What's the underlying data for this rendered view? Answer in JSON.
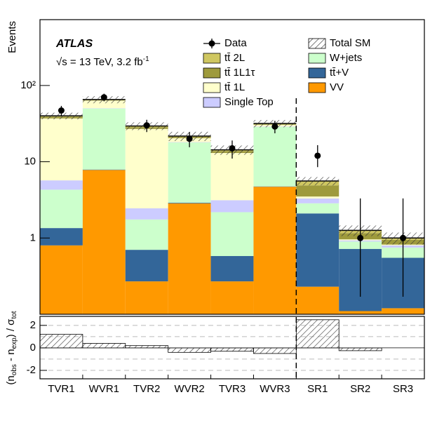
{
  "chart_data": {
    "type": "stacked_histogram",
    "title": "ATLAS",
    "subtitle_parts": [
      "√s = 13 TeV, 3.2 fb",
      "-1"
    ],
    "ylabel": "Events",
    "log_scale": true,
    "categories": [
      "TVR1",
      "WVR1",
      "TVR2",
      "WVR2",
      "TVR3",
      "WVR3",
      "SR1",
      "SR2",
      "SR3"
    ],
    "ylim": [
      0.1,
      730
    ],
    "yticks": [
      1,
      10,
      {
        "value": 100,
        "label": "10²"
      }
    ],
    "series": [
      {
        "name": "VV",
        "color": "#ff9900",
        "values": [
          0.8,
          7.8,
          0.27,
          2.85,
          0.27,
          4.7,
          0.23,
          0.11,
          0.12
        ]
      },
      {
        "name": "tt̄+V",
        "color": "#336699",
        "values": [
          0.55,
          0.1,
          0.43,
          0.05,
          0.31,
          0.05,
          1.87,
          0.61,
          0.43
        ]
      },
      {
        "name": "W+jets",
        "color": "#ccffcc",
        "values": [
          2.95,
          42,
          1.05,
          15,
          1.6,
          24,
          0.75,
          0.18,
          0.2
        ]
      },
      {
        "name": "Single Top",
        "color": "#ccccff",
        "values": [
          1.4,
          0.5,
          0.7,
          0.2,
          0.95,
          0.3,
          0.45,
          0.03,
          0.05
        ]
      },
      {
        "name": "tt̄ 1L",
        "color": "#ffffcc",
        "values": [
          31.3,
          13,
          24.5,
          2.3,
          9.9,
          1.5,
          0.2,
          0.03,
          0.02
        ]
      },
      {
        "name": "tt̄ 1L1τ",
        "color": "#9e9a3c",
        "values": [
          2,
          1,
          1.5,
          0.8,
          0.8,
          0.8,
          1.4,
          0.2,
          0.13
        ]
      },
      {
        "name": "tt̄ 2L",
        "color": "#cfc761",
        "values": [
          1,
          1,
          1,
          0.5,
          0.5,
          0.4,
          0.7,
          0.1,
          0.05
        ]
      }
    ],
    "total_sm": {
      "name": "Total SM",
      "err": [
        4,
        7,
        3.5,
        3,
        2,
        3.5,
        0.7,
        0.2,
        0.18
      ]
    },
    "data": {
      "name": "Data",
      "color": "#000000",
      "values": [
        47,
        70,
        30,
        20,
        15,
        29,
        12,
        1,
        1
      ],
      "err_low": [
        7,
        8,
        5.5,
        4.5,
        4,
        5.4,
        3.5,
        0.83,
        0.83
      ],
      "err_high": [
        7,
        8,
        5.5,
        4.5,
        4,
        5.4,
        4.5,
        2.3,
        2.3
      ]
    },
    "ratio": {
      "ylabel_parts": [
        "(n",
        "obs",
        " - n",
        "exp",
        ") / σ",
        "tot"
      ],
      "values": [
        1.2,
        0.4,
        0.2,
        -0.4,
        -0.3,
        -0.5,
        2.5,
        -0.25,
        0
      ],
      "ylim": [
        -2.75,
        2.8
      ],
      "yticks": [
        -2,
        0,
        2
      ],
      "grid_lines": [
        -2,
        -1,
        1,
        2
      ]
    }
  }
}
